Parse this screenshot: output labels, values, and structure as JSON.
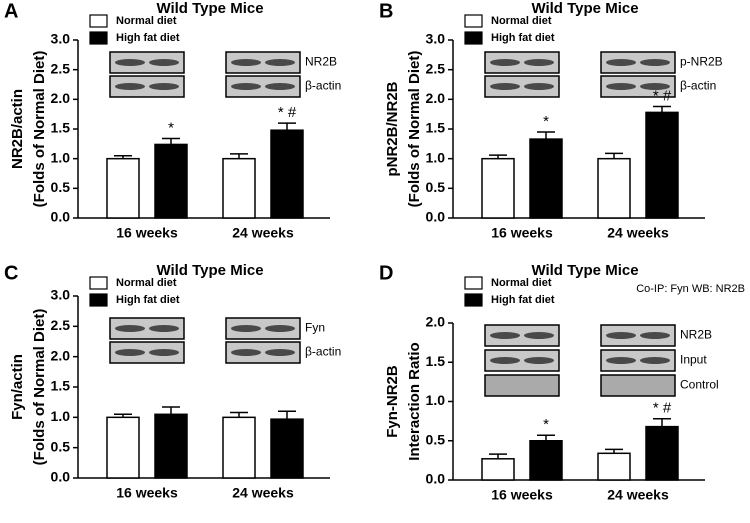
{
  "chart_data": [
    {
      "type": "bar",
      "panel_label": "A",
      "title": "Wild Type Mice",
      "ylabel": [
        "NR2B/actin",
        "(Folds of Normal Diet)"
      ],
      "categories": [
        "16 weeks",
        "24 weeks"
      ],
      "series": [
        {
          "name": "Normal diet",
          "color": "#ffffff",
          "values": [
            1.0,
            1.0
          ],
          "errors": [
            0.05,
            0.08
          ]
        },
        {
          "name": "High fat diet",
          "color": "#000000",
          "values": [
            1.24,
            1.48
          ],
          "errors": [
            0.1,
            0.12
          ]
        }
      ],
      "annotations": [
        "*",
        "* #"
      ],
      "blot_labels": [
        "NR2B",
        "β-actin"
      ],
      "ylim": [
        0,
        3
      ],
      "yticks": [
        {
          "value": 0,
          "label": "0.0"
        },
        0.5,
        {
          "value": 1,
          "label": "1.0"
        },
        1.5,
        {
          "value": 2,
          "label": "2.0"
        },
        2.5,
        {
          "value": 3,
          "label": "3.0"
        }
      ]
    },
    {
      "type": "bar",
      "panel_label": "B",
      "title": "Wild Type Mice",
      "ylabel": [
        "pNR2B/NR2B",
        "(Folds of  Normal Diet)"
      ],
      "categories": [
        "16 weeks",
        "24 weeks"
      ],
      "series": [
        {
          "name": "Normal diet",
          "color": "#ffffff",
          "values": [
            1.0,
            1.0
          ],
          "errors": [
            0.06,
            0.09
          ]
        },
        {
          "name": "High fat diet",
          "color": "#000000",
          "values": [
            1.33,
            1.78
          ],
          "errors": [
            0.12,
            0.1
          ]
        }
      ],
      "annotations": [
        "*",
        "* #"
      ],
      "blot_labels": [
        "p-NR2B",
        "β-actin"
      ],
      "ylim": [
        0,
        3
      ],
      "yticks": [
        {
          "value": 0,
          "label": "0.0"
        },
        0.5,
        {
          "value": 1,
          "label": "1.0"
        },
        1.5,
        {
          "value": 2,
          "label": "2.0"
        },
        2.5,
        {
          "value": 3,
          "label": "3.0"
        }
      ]
    },
    {
      "type": "bar",
      "panel_label": "C",
      "title": "Wild Type Mice",
      "ylabel": [
        "Fyn/actin",
        "(Folds of Normal Diet)"
      ],
      "categories": [
        "16 weeks",
        "24 weeks"
      ],
      "series": [
        {
          "name": "Normal diet",
          "color": "#ffffff",
          "values": [
            1.0,
            1.0
          ],
          "errors": [
            0.05,
            0.08
          ]
        },
        {
          "name": "High fat diet",
          "color": "#000000",
          "values": [
            1.05,
            0.97
          ],
          "errors": [
            0.12,
            0.13
          ]
        }
      ],
      "blot_labels": [
        "Fyn",
        "β-actin"
      ],
      "ylim": [
        0,
        3
      ],
      "yticks": [
        {
          "value": 0,
          "label": "0.0"
        },
        0.5,
        {
          "value": 1,
          "label": "1.0"
        },
        1.5,
        {
          "value": 2,
          "label": "2.0"
        },
        2.5,
        {
          "value": 3,
          "label": "3.0"
        }
      ]
    },
    {
      "type": "bar",
      "panel_label": "D",
      "title": "Wild Type Mice",
      "ylabel": [
        "Fyn-NR2B",
        "Interaction Ratio"
      ],
      "note": "Co-IP: Fyn WB: NR2B",
      "categories": [
        "16 weeks",
        "24 weeks"
      ],
      "series": [
        {
          "name": "Normal diet",
          "color": "#ffffff",
          "values": [
            0.27,
            0.34
          ],
          "errors": [
            0.06,
            0.05
          ]
        },
        {
          "name": "High fat diet",
          "color": "#000000",
          "values": [
            0.5,
            0.68
          ],
          "errors": [
            0.07,
            0.1
          ]
        }
      ],
      "annotations": [
        "*",
        "* #"
      ],
      "blot_labels": [
        "NR2B",
        "Input",
        "Control"
      ],
      "ylim": [
        0,
        2
      ],
      "yticks": [
        {
          "value": 0,
          "label": "0.0"
        },
        0.5,
        {
          "value": 1,
          "label": "1.0"
        },
        1.5,
        {
          "value": 2,
          "label": "2.0"
        }
      ]
    }
  ]
}
